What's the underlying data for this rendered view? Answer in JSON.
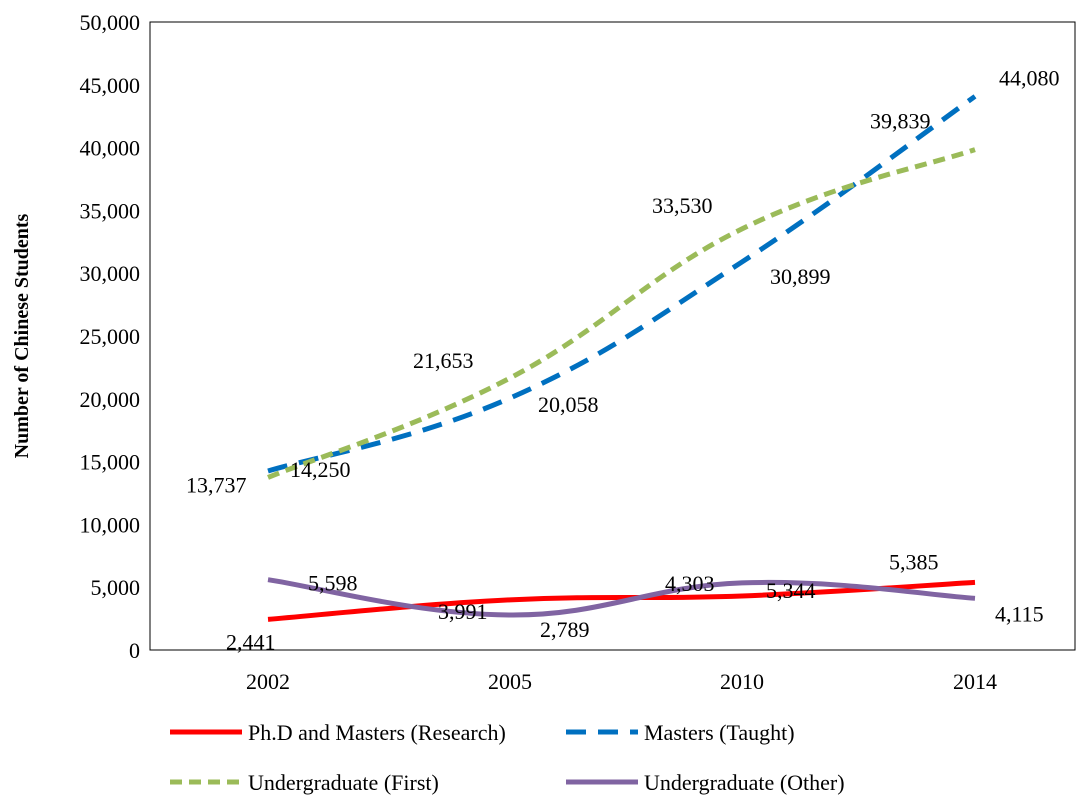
{
  "chart_data": {
    "type": "line",
    "title": "",
    "xlabel": "",
    "ylabel": "Number of Chinese Students",
    "categories": [
      "2002",
      "2005",
      "2010",
      "2014"
    ],
    "ylim": [
      0,
      50000
    ],
    "yticks": [
      0,
      5000,
      10000,
      15000,
      20000,
      25000,
      30000,
      35000,
      40000,
      45000,
      50000
    ],
    "ytick_labels": [
      "0",
      "5,000",
      "10,000",
      "15,000",
      "20,000",
      "25,000",
      "30,000",
      "35,000",
      "40,000",
      "45,000",
      "50,000"
    ],
    "grid": false,
    "legend_position": "bottom",
    "series": [
      {
        "name": "Ph.D and Masters (Research)",
        "values": [
          2441,
          3991,
          4303,
          5385
        ],
        "labels": [
          "2,441",
          "3,991",
          "4,303",
          "5,385"
        ],
        "color": "#ff0000",
        "style": "solid"
      },
      {
        "name": "Masters (Taught)",
        "values": [
          14250,
          20058,
          30899,
          44080
        ],
        "labels": [
          "14,250",
          "20,058",
          "30,899",
          "44,080"
        ],
        "color": "#0070c0",
        "style": "dashed"
      },
      {
        "name": "Undergraduate (First)",
        "values": [
          13737,
          21653,
          33530,
          39839
        ],
        "labels": [
          "13,737",
          "21,653",
          "33,530",
          "39,839"
        ],
        "color": "#9bbb59",
        "style": "dotted"
      },
      {
        "name": "Undergraduate (Other)",
        "values": [
          5598,
          2789,
          5344,
          4115
        ],
        "labels": [
          "5,598",
          "2,789",
          "5,344",
          "4,115"
        ],
        "color": "#8064a2",
        "style": "solid"
      }
    ]
  }
}
